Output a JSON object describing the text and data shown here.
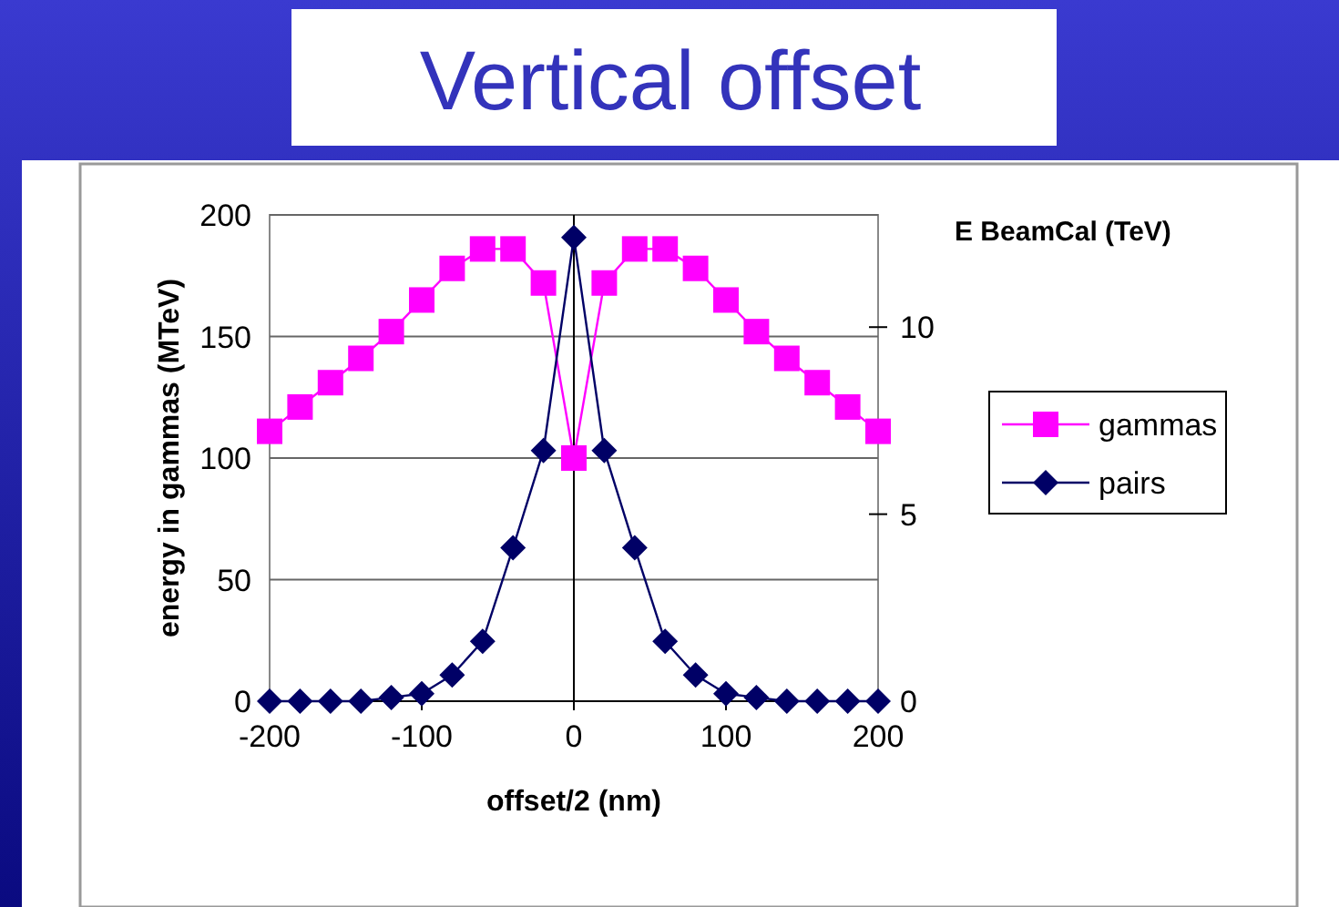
{
  "chart_data": {
    "type": "line",
    "title": "Vertical offset",
    "xlabel": "offset/2 (nm)",
    "ylabel": "energy in gammas (MTeV)",
    "y2label": "E BeamCal (TeV)",
    "x": [
      -200,
      -180,
      -160,
      -140,
      -120,
      -100,
      -80,
      -60,
      -40,
      -20,
      0,
      20,
      40,
      60,
      80,
      100,
      120,
      140,
      160,
      180,
      200
    ],
    "series": [
      {
        "name": "gammas",
        "color": "#ff00ff",
        "marker": "square",
        "values": [
          111,
          121,
          131,
          141,
          152,
          165,
          178,
          186,
          186,
          172,
          100,
          172,
          186,
          186,
          178,
          165,
          152,
          141,
          131,
          121,
          111
        ]
      },
      {
        "name": "pairs",
        "color": "#000066",
        "marker": "diamond",
        "axis": "y2",
        "values": [
          0,
          0,
          0,
          0,
          0.1,
          0.2,
          0.7,
          1.6,
          4.1,
          6.7,
          12.4,
          6.7,
          4.1,
          1.6,
          0.7,
          0.2,
          0.1,
          0,
          0,
          0,
          0
        ]
      }
    ],
    "xlim": [
      -200,
      200
    ],
    "xticks": [
      -200,
      -100,
      0,
      100,
      200
    ],
    "ylim": [
      0,
      200
    ],
    "yticks": [
      0,
      50,
      100,
      150,
      200
    ],
    "y2lim": [
      0,
      13
    ],
    "y2ticks": [
      0,
      5,
      10
    ],
    "ref_lines": [
      {
        "axis": "x",
        "value": 0,
        "color": "#000000"
      }
    ],
    "grid": "y",
    "legend": "right"
  }
}
